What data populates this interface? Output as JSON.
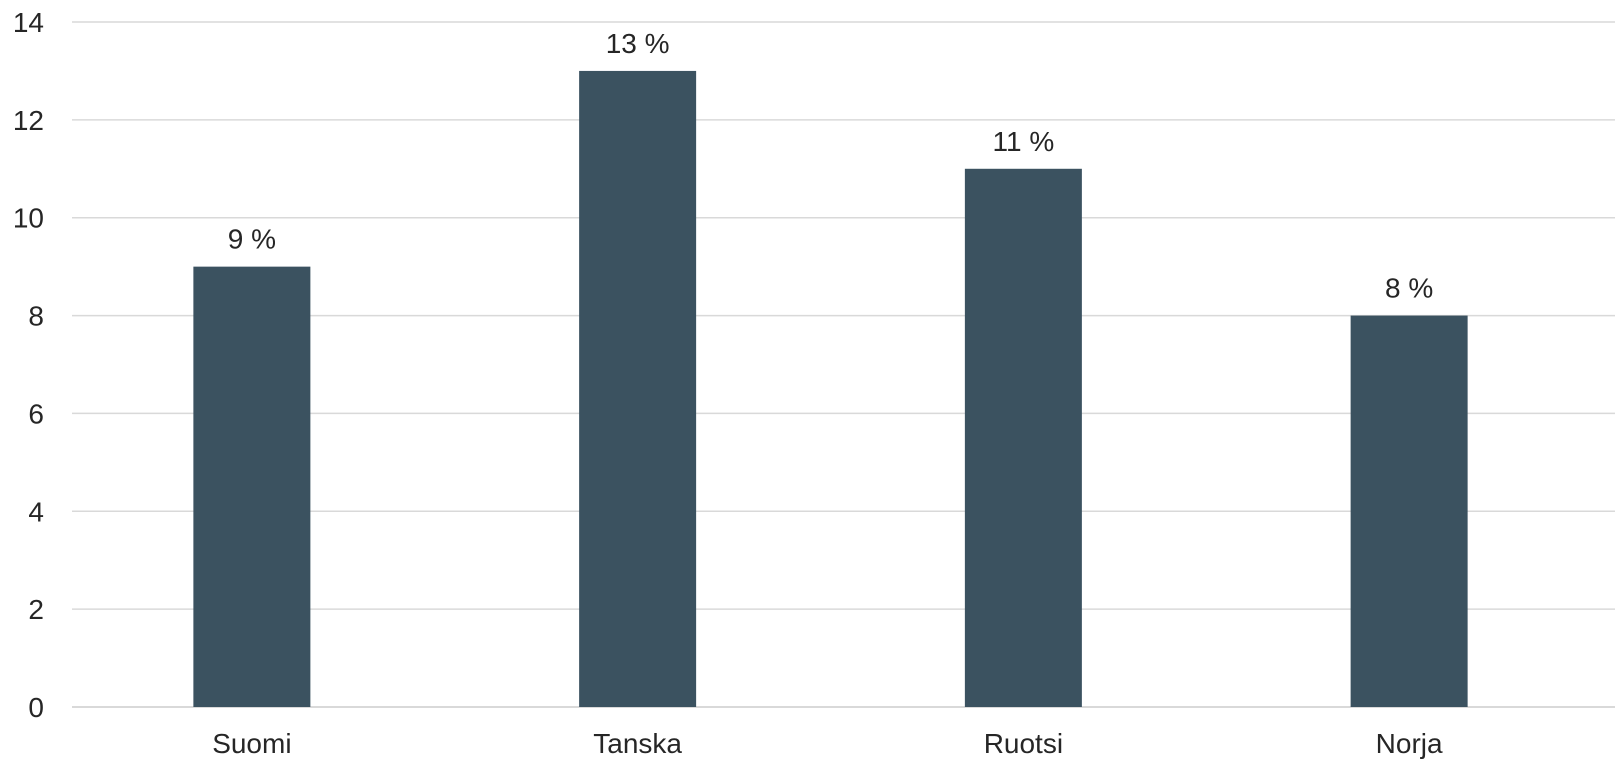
{
  "chart_data": {
    "type": "bar",
    "categories": [
      "Suomi",
      "Tanska",
      "Ruotsi",
      "Norja"
    ],
    "values": [
      9,
      13,
      11,
      8
    ],
    "data_labels": [
      "9 %",
      "13 %",
      "11 %",
      "8 %"
    ],
    "title": "",
    "xlabel": "",
    "ylabel": "",
    "ylim": [
      0,
      14
    ],
    "yticks": [
      "0",
      "2",
      "4",
      "6",
      "8",
      "10",
      "12",
      "14"
    ],
    "grid": true,
    "legend": "none",
    "colors": {
      "bar": "#3b5260",
      "grid": "#d9d9d9",
      "text": "#262626"
    }
  }
}
